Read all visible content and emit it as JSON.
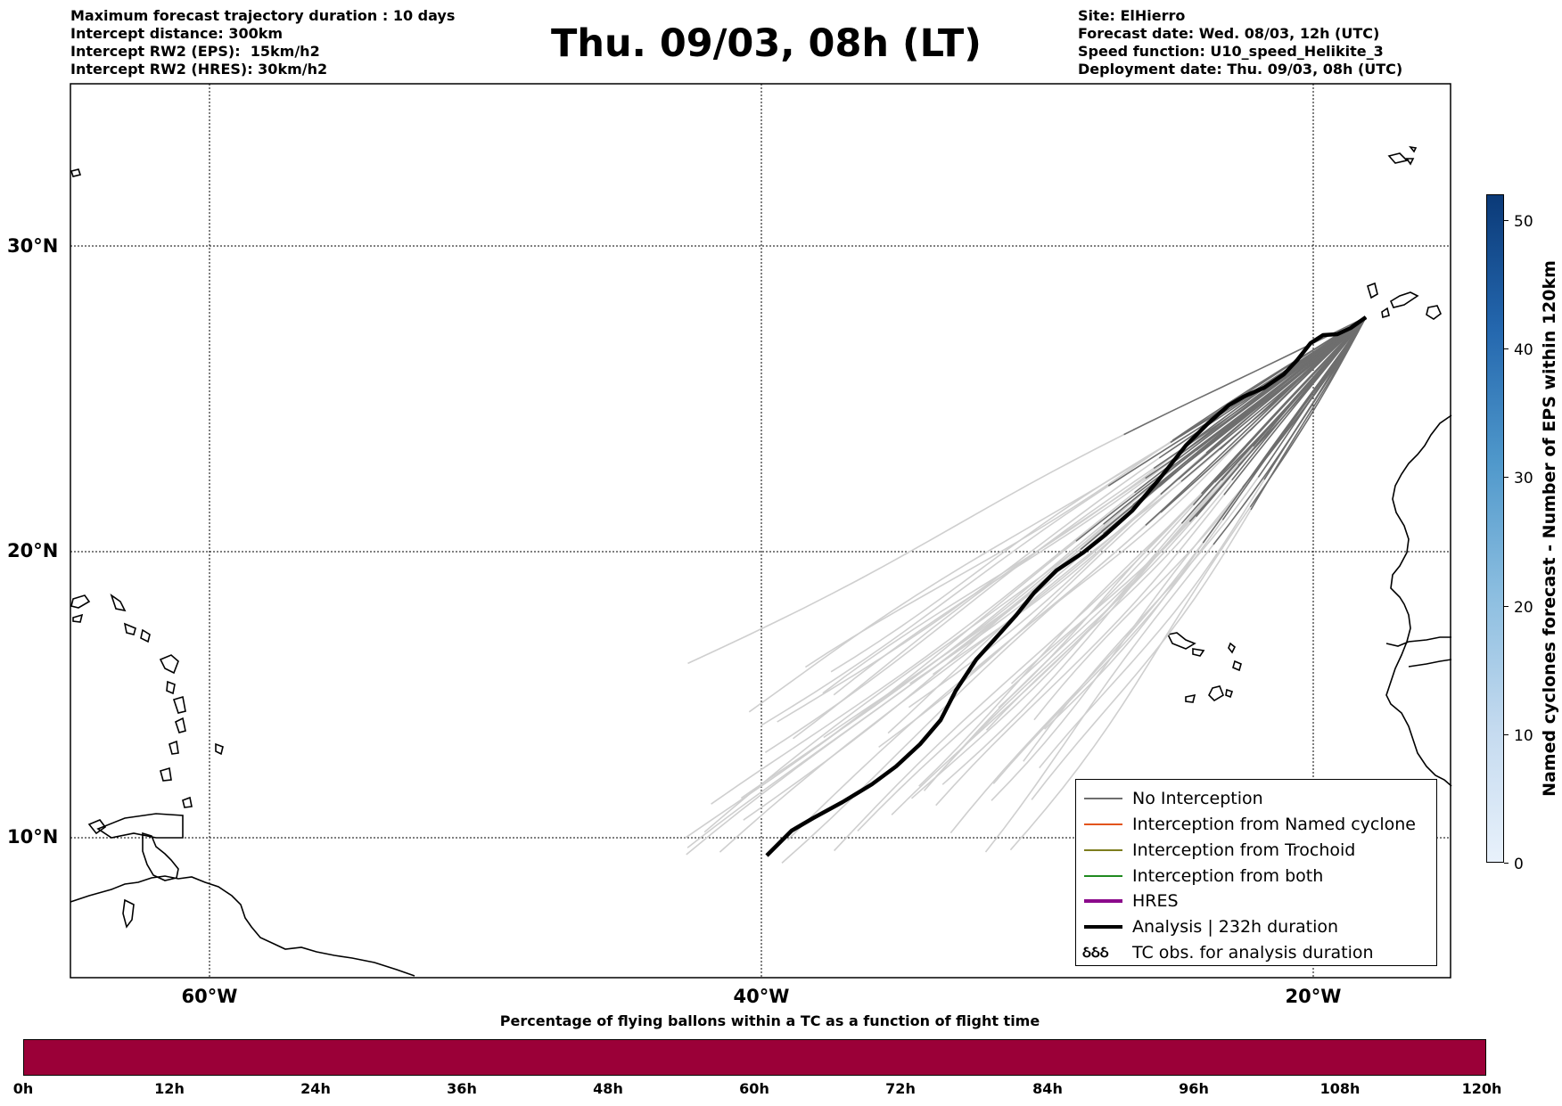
{
  "header": {
    "left_lines": [
      "Maximum forecast trajectory duration : 10 days",
      "Intercept distance: 300km",
      "Intercept RW2 (EPS):  15km/h2",
      "Intercept RW2 (HRES): 30km/h2"
    ],
    "title": "Thu. 09/03, 08h (LT)",
    "right_lines": [
      "Site: ElHierro",
      "Forecast date: Wed. 08/03, 12h (UTC)",
      "Speed function: U10_speed_Helikite_3",
      "Deployment date: Thu. 09/03, 08h (UTC)"
    ]
  },
  "map": {
    "lon_labels": [
      "60°W",
      "40°W",
      "20°W"
    ],
    "lat_labels": [
      "30°N",
      "20°N",
      "10°N"
    ],
    "colors": {
      "no_interception": "#6e6e6e",
      "ensemble_faded": "#cfcfcf",
      "analysis": "#000000",
      "named_cyclone": "#e2541c",
      "trochoid": "#7d7d1e",
      "both": "#1f8a1f",
      "hres": "#8b0a8b"
    }
  },
  "legend": {
    "items": [
      {
        "label": "No Interception",
        "color": "#6e6e6e",
        "style": "thin"
      },
      {
        "label": "Interception from Named cyclone",
        "color": "#e2541c",
        "style": "thin"
      },
      {
        "label": "Interception from Trochoid",
        "color": "#7d7d1e",
        "style": "thin"
      },
      {
        "label": "Interception from both",
        "color": "#1f8a1f",
        "style": "thin"
      },
      {
        "label": "HRES",
        "color": "#8b0a8b",
        "style": "thick"
      },
      {
        "label": "Analysis | 232h duration",
        "color": "#000000",
        "style": "thick"
      },
      {
        "label": "TC obs. for analysis duration",
        "symbol": "ઠઠઠ"
      }
    ]
  },
  "colorbar": {
    "title": "Named cyclones forecast - Number of EPS within 120km",
    "ticks": [
      "0",
      "10",
      "20",
      "30",
      "40",
      "50"
    ],
    "range": [
      0,
      52
    ]
  },
  "flight_time_bar": {
    "title": "Percentage of flying ballons within a TC as a function of flight time",
    "ticks": [
      "0h",
      "12h",
      "24h",
      "36h",
      "48h",
      "60h",
      "72h",
      "84h",
      "96h",
      "108h",
      "120h"
    ],
    "fill_color": "#9b0038"
  }
}
